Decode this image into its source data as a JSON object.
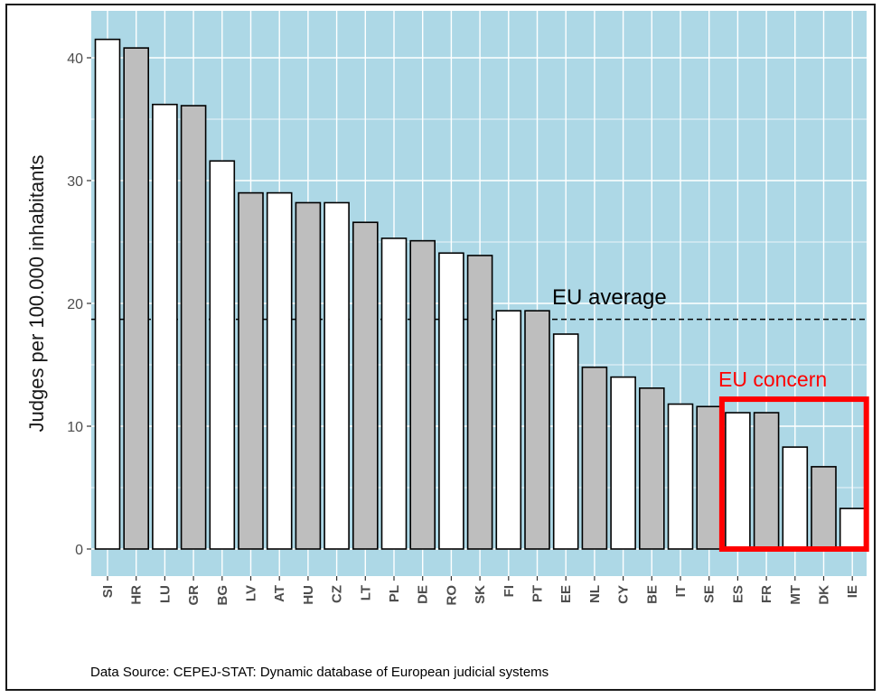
{
  "chart_data": {
    "type": "bar",
    "categories": [
      "SI",
      "HR",
      "LU",
      "GR",
      "BG",
      "LV",
      "AT",
      "HU",
      "CZ",
      "LT",
      "PL",
      "DE",
      "RO",
      "SK",
      "FI",
      "PT",
      "EE",
      "NL",
      "CY",
      "BE",
      "IT",
      "SE",
      "ES",
      "FR",
      "MT",
      "DK",
      "IE"
    ],
    "values": [
      41.5,
      40.8,
      36.2,
      36.1,
      31.6,
      29.0,
      29.0,
      28.2,
      28.2,
      26.6,
      25.3,
      25.1,
      24.1,
      23.9,
      19.4,
      19.4,
      17.5,
      14.8,
      14.0,
      13.1,
      11.8,
      11.6,
      11.1,
      11.1,
      8.3,
      6.7,
      3.3
    ],
    "bar_fills": [
      "#ffffff",
      "#bebebe"
    ],
    "ylabel": "Judges per 100.000 inhabitants",
    "xlabel": "",
    "ylim": [
      0,
      43.5
    ],
    "yticks": [
      0,
      10,
      20,
      30,
      40
    ],
    "grid": true,
    "panel_color": "#add8e6",
    "reference_line": {
      "value": 18.7,
      "style": "dashed",
      "label": "EU average"
    },
    "highlight": {
      "categories": [
        "ES",
        "FR",
        "MT",
        "DK",
        "IE"
      ],
      "label": "EU concern",
      "y_max": 12.2,
      "color": "#ff0000"
    },
    "source": "Data Source: CEPEJ-STAT: Dynamic database of European judicial systems"
  }
}
